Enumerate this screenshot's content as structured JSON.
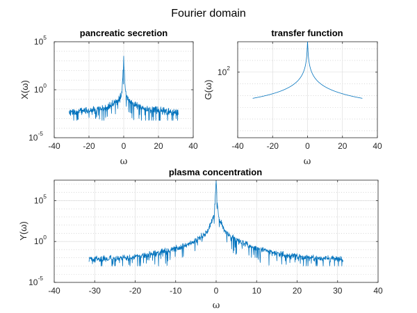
{
  "figure": {
    "suptitle": "Fourier domain",
    "line_color": "#0072BD",
    "background": "#ffffff"
  },
  "chart_data": [
    {
      "type": "line",
      "title": "pancreatic secretion",
      "xlabel": "ω",
      "ylabel": "X(ω)",
      "xlim": [
        -40,
        40
      ],
      "xticks": [
        -40,
        -20,
        0,
        20,
        40
      ],
      "yscale": "log",
      "ylim_log10": [
        -5,
        5
      ],
      "yticks": [
        {
          "base": "10",
          "exp": "5"
        },
        {
          "base": "10",
          "exp": "0"
        },
        {
          "base": "10",
          "exp": "-5"
        }
      ],
      "grid": true,
      "series": [
        {
          "x_range": [
            -31.4,
            31.4
          ],
          "samples": 501,
          "description_points_log10": [
            [
              -31.4,
              -2.1
            ],
            [
              -20,
              -1.9
            ],
            [
              -10,
              -1.6
            ],
            [
              -3,
              -0.9
            ],
            [
              -1,
              0.0
            ],
            [
              0,
              3.5
            ],
            [
              1,
              0.0
            ],
            [
              3,
              -0.9
            ],
            [
              10,
              -1.6
            ],
            [
              20,
              -1.9
            ],
            [
              31.4,
              -2.1
            ]
          ],
          "noise_floor_log10": -3.2
        }
      ]
    },
    {
      "type": "line",
      "title": "transfer function",
      "xlabel": "ω",
      "ylabel": "G(ω)",
      "xlim": [
        -40,
        40
      ],
      "xticks": [
        -40,
        -20,
        0,
        20,
        40
      ],
      "yscale": "log",
      "ylim_log10": [
        -3.6,
        4.6
      ],
      "yticks": [
        {
          "base": "10",
          "exp": "2"
        }
      ],
      "grid": true,
      "series": [
        {
          "x_range": [
            -31.4,
            31.4
          ],
          "samples": 801,
          "model": "G = K / (1 + (w/wc)^2)",
          "K_log10": 4.6,
          "wc": 0.12
        }
      ]
    },
    {
      "type": "line",
      "title": "plasma concentration",
      "xlabel": "ω",
      "ylabel": "Y(ω)",
      "xlim": [
        -40,
        40
      ],
      "xticks": [
        -40,
        -30,
        -20,
        -10,
        0,
        10,
        20,
        30,
        40
      ],
      "yscale": "log",
      "ylim_log10": [
        -5,
        7.5
      ],
      "yticks": [
        {
          "base": "10",
          "exp": "5"
        },
        {
          "base": "10",
          "exp": "0"
        },
        {
          "base": "10",
          "exp": "-5"
        }
      ],
      "grid": true,
      "series": [
        {
          "x_range": [
            -31.4,
            31.4
          ],
          "samples": 901,
          "description_points_log10": [
            [
              -31.4,
              -1.9
            ],
            [
              -25,
              -1.8
            ],
            [
              -20,
              -1.6
            ],
            [
              -15,
              -1.2
            ],
            [
              -10,
              -0.6
            ],
            [
              -5,
              0.4
            ],
            [
              -2,
              1.6
            ],
            [
              -0.5,
              3.5
            ],
            [
              0,
              7.4
            ],
            [
              0.5,
              3.5
            ],
            [
              2,
              1.6
            ],
            [
              5,
              0.4
            ],
            [
              10,
              -0.6
            ],
            [
              15,
              -1.2
            ],
            [
              20,
              -1.6
            ],
            [
              25,
              -1.8
            ],
            [
              31.4,
              -1.9
            ]
          ],
          "noise_floor_log10": -3.0
        }
      ]
    }
  ]
}
